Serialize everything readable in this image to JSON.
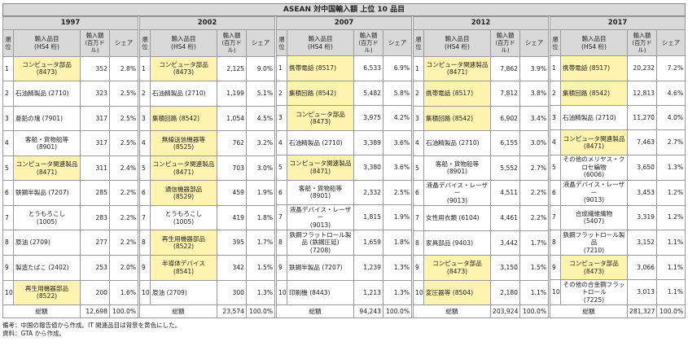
{
  "title": "ASEAN 対中国輸入額 上位 10 品目",
  "header": {
    "rank": "順位",
    "item_line1": "輸入品目",
    "item_line2": "(HS4 桁)",
    "value_line1": "輸入額",
    "value_line2": "(百万ドル)",
    "share": "シェア"
  },
  "total_label": "総額",
  "highlight_color": "#fff3b0",
  "panels": [
    {
      "year": "1997",
      "rows": [
        {
          "rank": "1",
          "item": "コンピュータ部品",
          "code": "(8473)",
          "value": "352",
          "share": "2.8%",
          "it": true
        },
        {
          "rank": "2",
          "item": "石油精製品 (2710)",
          "code": "",
          "value": "323",
          "share": "2.5%",
          "it": false
        },
        {
          "rank": "3",
          "item": "亜鉛の塊 (7901)",
          "code": "",
          "value": "317",
          "share": "2.5%",
          "it": false
        },
        {
          "rank": "4",
          "item": "客船・貨物船等",
          "code": "(8901)",
          "value": "317",
          "share": "2.5%",
          "it": false
        },
        {
          "rank": "5",
          "item": "コンピュータ関連製品",
          "code": "(8471)",
          "value": "311",
          "share": "2.4%",
          "it": true
        },
        {
          "rank": "6",
          "item": "鉄鋼半製品 (7207)",
          "code": "",
          "value": "285",
          "share": "2.2%",
          "it": false
        },
        {
          "rank": "7",
          "item": "とうもろこし",
          "code": "(1005)",
          "value": "283",
          "share": "2.2%",
          "it": false
        },
        {
          "rank": "8",
          "item": "原油 (2709)",
          "code": "",
          "value": "277",
          "share": "2.2%",
          "it": false
        },
        {
          "rank": "9",
          "item": "製造たばこ (2402)",
          "code": "",
          "value": "253",
          "share": "2.0%",
          "it": false
        },
        {
          "rank": "10",
          "item": "再生用機器部品",
          "code": "(8522)",
          "value": "200",
          "share": "1.6%",
          "it": true
        }
      ],
      "total_value": "12,698",
      "total_share": "100.0%"
    },
    {
      "year": "2002",
      "rows": [
        {
          "rank": "1",
          "item": "コンピュータ部品",
          "code": "(8473)",
          "value": "2,125",
          "share": "9.0%",
          "it": true
        },
        {
          "rank": "2",
          "item": "石油精製品 (2710)",
          "code": "",
          "value": "1,199",
          "share": "5.1%",
          "it": false
        },
        {
          "rank": "3",
          "item": "集積回路 (8542)",
          "code": "",
          "value": "1,054",
          "share": "4.5%",
          "it": true
        },
        {
          "rank": "4",
          "item": "無線送信機器等",
          "code": "(8525)",
          "value": "762",
          "share": "3.2%",
          "it": true
        },
        {
          "rank": "5",
          "item": "コンピュータ関連製品",
          "code": "(8471)",
          "value": "703",
          "share": "3.0%",
          "it": true
        },
        {
          "rank": "6",
          "item": "通信機器部品",
          "code": "(8529)",
          "value": "459",
          "share": "1.9%",
          "it": true
        },
        {
          "rank": "7",
          "item": "とうもろこし",
          "code": "(1005)",
          "value": "419",
          "share": "1.8%",
          "it": false
        },
        {
          "rank": "8",
          "item": "再生用機器部品",
          "code": "(8522)",
          "value": "395",
          "share": "1.7%",
          "it": true
        },
        {
          "rank": "9",
          "item": "半導体デバイス",
          "code": "(8541)",
          "value": "342",
          "share": "1.5%",
          "it": true
        },
        {
          "rank": "10",
          "item": "原油 (2709)",
          "code": "",
          "value": "300",
          "share": "1.3%",
          "it": false
        }
      ],
      "total_value": "23,574",
      "total_share": "100.0%"
    },
    {
      "year": "2007",
      "rows": [
        {
          "rank": "1",
          "item": "携帯電話 (8517)",
          "code": "",
          "value": "6,533",
          "share": "6.9%",
          "it": true
        },
        {
          "rank": "2",
          "item": "集積回路 (8542)",
          "code": "",
          "value": "5,482",
          "share": "5.8%",
          "it": true
        },
        {
          "rank": "3",
          "item": "コンピュータ部品",
          "code": "(8473)",
          "value": "3,975",
          "share": "4.2%",
          "it": true
        },
        {
          "rank": "4",
          "item": "石油精製品 (2710)",
          "code": "",
          "value": "3,389",
          "share": "3.6%",
          "it": false
        },
        {
          "rank": "5",
          "item": "コンピュータ関連製品",
          "code": "(8471)",
          "value": "3,380",
          "share": "3.6%",
          "it": true
        },
        {
          "rank": "6",
          "item": "客船・貨物船等",
          "code": "(8901)",
          "value": "2,332",
          "share": "2.5%",
          "it": false
        },
        {
          "rank": "7",
          "item": "液晶デバイス・レーザー",
          "code": "(9013)",
          "value": "1,815",
          "share": "1.9%",
          "it": false
        },
        {
          "rank": "8",
          "item": "鉄鋼フラットロール製品 (鉄鋼圧延)",
          "code": "(7208)",
          "value": "1,659",
          "share": "1.8%",
          "it": false
        },
        {
          "rank": "9",
          "item": "鉄鋼半製品 (7207)",
          "code": "",
          "value": "1,239",
          "share": "1.3%",
          "it": false
        },
        {
          "rank": "10",
          "item": "印刷機 (8443)",
          "code": "",
          "value": "1,213",
          "share": "1.3%",
          "it": false
        }
      ],
      "total_value": "94,243",
      "total_share": "100.0%"
    },
    {
      "year": "2012",
      "rows": [
        {
          "rank": "1",
          "item": "コンピュータ関連製品",
          "code": "(8471)",
          "value": "7,862",
          "share": "3.9%",
          "it": true
        },
        {
          "rank": "2",
          "item": "携帯電話 (8517)",
          "code": "",
          "value": "7,812",
          "share": "3.8%",
          "it": true
        },
        {
          "rank": "3",
          "item": "集積回路 (8542)",
          "code": "",
          "value": "6,902",
          "share": "3.4%",
          "it": true
        },
        {
          "rank": "4",
          "item": "石油精製品 (2710)",
          "code": "",
          "value": "6,155",
          "share": "3.0%",
          "it": false
        },
        {
          "rank": "5",
          "item": "客船・貨物船等",
          "code": "(8901)",
          "value": "5,552",
          "share": "2.7%",
          "it": false
        },
        {
          "rank": "6",
          "item": "液晶デバイス・レーザー",
          "code": "(9013)",
          "value": "4,511",
          "share": "2.2%",
          "it": false
        },
        {
          "rank": "7",
          "item": "女性用衣類 (6104)",
          "code": "",
          "value": "4,461",
          "share": "2.2%",
          "it": false
        },
        {
          "rank": "8",
          "item": "家具部品 (9403)",
          "code": "",
          "value": "3,442",
          "share": "1.7%",
          "it": false
        },
        {
          "rank": "9",
          "item": "コンピュータ部品",
          "code": "(8473)",
          "value": "3,150",
          "share": "1.5%",
          "it": true
        },
        {
          "rank": "10",
          "item": "変圧器等 (8504)",
          "code": "",
          "value": "2,180",
          "share": "1.1%",
          "it": true
        }
      ],
      "total_value": "203,924",
      "total_share": "100.0%"
    },
    {
      "year": "2017",
      "rows": [
        {
          "rank": "1",
          "item": "携帯電話 (8517)",
          "code": "",
          "value": "20,232",
          "share": "7.2%",
          "it": true
        },
        {
          "rank": "2",
          "item": "集積回路 (8542)",
          "code": "",
          "value": "12,813",
          "share": "4.6%",
          "it": true
        },
        {
          "rank": "3",
          "item": "石油精製品 (2710)",
          "code": "",
          "value": "11,270",
          "share": "4.0%",
          "it": false
        },
        {
          "rank": "4",
          "item": "コンピュータ関連製品",
          "code": "(8471)",
          "value": "7,463",
          "share": "2.7%",
          "it": true
        },
        {
          "rank": "5",
          "item": "その他のメリヤス・クロセ編物",
          "code": "(6006)",
          "value": "3,650",
          "share": "1.3%",
          "it": false
        },
        {
          "rank": "6",
          "item": "液晶デバイス・レーザー",
          "code": "(9013)",
          "value": "3,453",
          "share": "1.2%",
          "it": false
        },
        {
          "rank": "7",
          "item": "合成繊維織物",
          "code": "(5407)",
          "value": "3,319",
          "share": "1.2%",
          "it": false
        },
        {
          "rank": "8",
          "item": "鉄鋼フラットロール製品",
          "code": "(7210)",
          "value": "3,152",
          "share": "1.1%",
          "it": false
        },
        {
          "rank": "9",
          "item": "コンピュータ部品",
          "code": "(8473)",
          "value": "3,066",
          "share": "1.1%",
          "it": true
        },
        {
          "rank": "10",
          "item": "その他の合金鋼フラットロール",
          "code": "(7225)",
          "value": "3,013",
          "share": "1.1%",
          "it": false
        }
      ],
      "total_value": "281,327",
      "total_share": "100.0%"
    }
  ],
  "footnotes": [
    "備考：中国の報告値から作成。IT 関連品目は背景を黄色にした。",
    "資料：GTA から作成。"
  ]
}
